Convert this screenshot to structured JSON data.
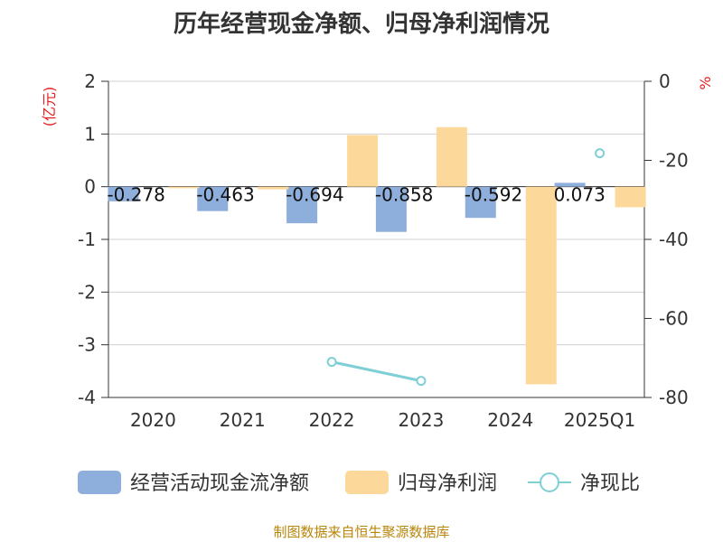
{
  "chart_data": {
    "type": "bar",
    "title": "历年经营现金净额、归母净利润情况",
    "categories": [
      "2020",
      "2021",
      "2022",
      "2023",
      "2024",
      "2025Q1"
    ],
    "y_left": {
      "label": "(亿元)",
      "ylim": [
        -4,
        2
      ],
      "ticks": [
        "2",
        "1",
        "0",
        "-1",
        "-2",
        "-3",
        "-4"
      ]
    },
    "y_right": {
      "label": "%",
      "ylim": [
        -80,
        0
      ],
      "ticks": [
        "0",
        "-20",
        "-40",
        "-60",
        "-80"
      ]
    },
    "series": [
      {
        "name": "经营活动现金流净额",
        "type": "bar",
        "axis": "left",
        "color": "#8eaedb",
        "values": [
          -0.278,
          -0.463,
          -0.694,
          -0.858,
          -0.592,
          0.073
        ],
        "labels": [
          "-0.278",
          "-0.463",
          "-0.694",
          "-0.858",
          "-0.592",
          "0.073"
        ]
      },
      {
        "name": "归母净利润",
        "type": "bar",
        "axis": "left",
        "color": "#fdd89b",
        "values": [
          -0.03,
          -0.05,
          0.98,
          1.13,
          -3.75,
          -0.39
        ]
      },
      {
        "name": "净现比",
        "type": "line",
        "axis": "right",
        "color": "#7ecfd6",
        "values": [
          null,
          null,
          -71.0,
          -75.8,
          null,
          -18.2
        ]
      }
    ],
    "grid": true,
    "legend_position": "bottom"
  },
  "source_text": "制图数据来自恒生聚源数据库"
}
